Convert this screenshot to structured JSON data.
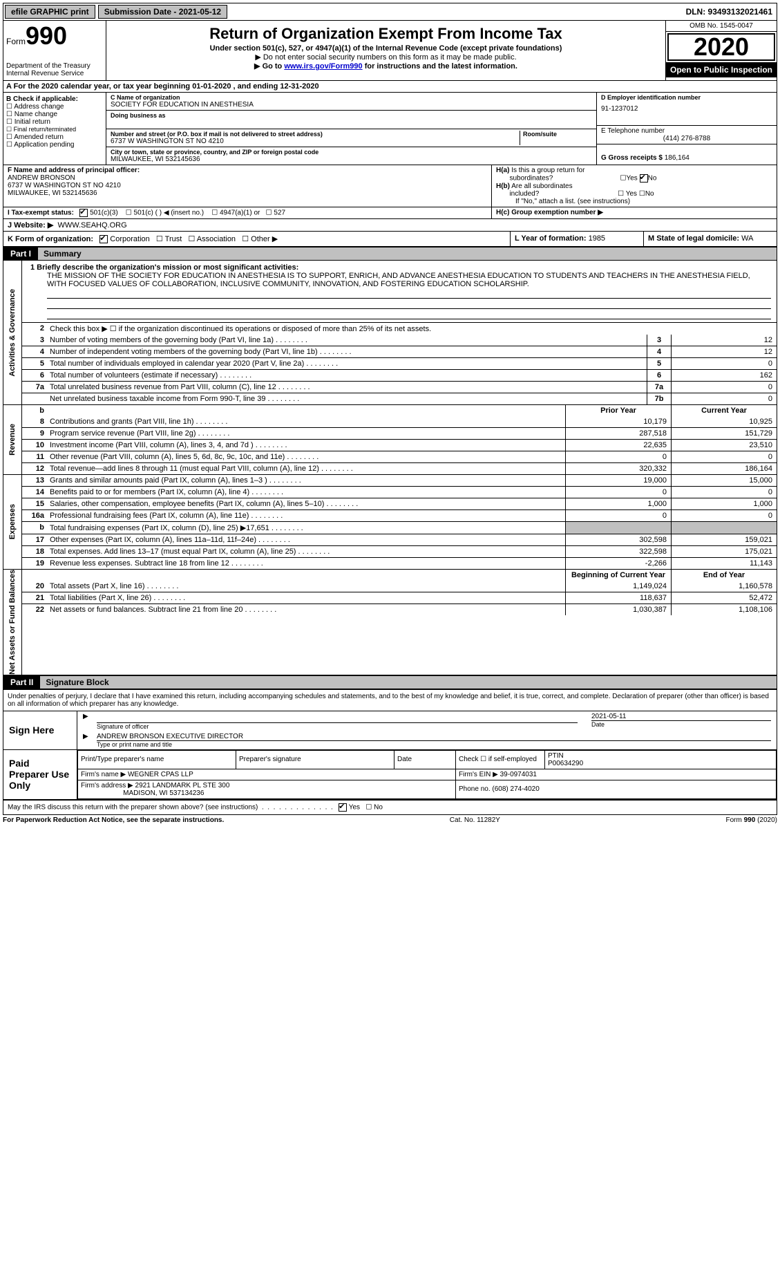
{
  "topbar": {
    "efile": "efile GRAPHIC print",
    "submission": "Submission Date - 2021-05-12",
    "dln": "DLN: 93493132021461"
  },
  "header": {
    "form_word": "Form",
    "form_number": "990",
    "dept": "Department of the Treasury\nInternal Revenue Service",
    "title": "Return of Organization Exempt From Income Tax",
    "subtitle": "Under section 501(c), 527, or 4947(a)(1) of the Internal Revenue Code (except private foundations)",
    "note1": "▶ Do not enter social security numbers on this form as it may be made public.",
    "note2_prefix": "▶ Go to ",
    "note2_link": "www.irs.gov/Form990",
    "note2_suffix": " for instructions and the latest information.",
    "omb": "OMB No. 1545-0047",
    "year": "2020",
    "open_public": "Open to Public Inspection"
  },
  "line_a": "A For the 2020 calendar year, or tax year beginning 01-01-2020    , and ending 12-31-2020",
  "section_b": {
    "header": "B Check if applicable:",
    "options": [
      "Address change",
      "Name change",
      "Initial return",
      "Final return/terminated",
      "Amended return",
      "Application pending"
    ],
    "c_label": "C Name of organization",
    "c_value": "SOCIETY FOR EDUCATION IN ANESTHESIA",
    "dba_label": "Doing business as",
    "addr_label": "Number and street (or P.O. box if mail is not delivered to street address)",
    "addr_value": "6737 W WASHINGTON ST NO 4210",
    "room_label": "Room/suite",
    "city_label": "City or town, state or province, country, and ZIP or foreign postal code",
    "city_value": "MILWAUKEE, WI  532145636",
    "d_label": "D Employer identification number",
    "d_value": "91-1237012",
    "e_label": "E Telephone number",
    "e_value": "(414) 276-8788",
    "g_label": "G Gross receipts $",
    "g_value": "186,164"
  },
  "section_f": {
    "f_label": "F Name and address of principal officer:",
    "f_name": "ANDREW BRONSON",
    "f_addr1": "6737 W WASHINGTON ST NO 4210",
    "f_addr2": "MILWAUKEE, WI  532145636",
    "ha_label": "H(a)  Is this a group return for subordinates?",
    "ha_yes": "Yes",
    "ha_no": "No",
    "hb_label": "H(b)  Are all subordinates included?",
    "hb_yes": "Yes",
    "hb_no": "No",
    "hb_note": "If \"No,\" attach a list. (see instructions)",
    "hc_label": "H(c)  Group exemption number ▶"
  },
  "section_i": {
    "label": "I  Tax-exempt status:",
    "opt1": "501(c)(3)",
    "opt2": "501(c) (   ) ◀ (insert no.)",
    "opt3": "4947(a)(1) or",
    "opt4": "527"
  },
  "section_j": {
    "label": "J  Website: ▶",
    "value": "WWW.SEAHQ.ORG"
  },
  "section_k": {
    "label": "K Form of organization:",
    "opts": [
      "Corporation",
      "Trust",
      "Association",
      "Other ▶"
    ],
    "l_label": "L Year of formation:",
    "l_value": "1985",
    "m_label": "M State of legal domicile:",
    "m_value": "WA"
  },
  "part1": {
    "tab": "Part I",
    "title": "Summary"
  },
  "mission": {
    "q": "1  Briefly describe the organization's mission or most significant activities:",
    "text": "THE MISSION OF THE SOCIETY FOR EDUCATION IN ANESTHESIA IS TO SUPPORT, ENRICH, AND ADVANCE ANESTHESIA EDUCATION TO STUDENTS AND TEACHERS IN THE ANESTHESIA FIELD, WITH FOCUSED VALUES OF COLLABORATION, INCLUSIVE COMMUNITY, INNOVATION, AND FOSTERING EDUCATION SCHOLARSHIP."
  },
  "governance": {
    "label": "Activities & Governance",
    "line2": "Check this box ▶ ☐  if the organization discontinued its operations or disposed of more than 25% of its net assets.",
    "lines": [
      {
        "num": "3",
        "desc": "Number of voting members of the governing body (Part VI, line 1a)",
        "cell": "3",
        "val": "12"
      },
      {
        "num": "4",
        "desc": "Number of independent voting members of the governing body (Part VI, line 1b)",
        "cell": "4",
        "val": "12"
      },
      {
        "num": "5",
        "desc": "Total number of individuals employed in calendar year 2020 (Part V, line 2a)",
        "cell": "5",
        "val": "0"
      },
      {
        "num": "6",
        "desc": "Total number of volunteers (estimate if necessary)",
        "cell": "6",
        "val": "162"
      },
      {
        "num": "7a",
        "desc": "Total unrelated business revenue from Part VIII, column (C), line 12",
        "cell": "7a",
        "val": "0"
      },
      {
        "num": "",
        "desc": "Net unrelated business taxable income from Form 990-T, line 39",
        "cell": "7b",
        "val": "0"
      }
    ]
  },
  "revenue": {
    "label": "Revenue",
    "header_prior": "Prior Year",
    "header_curr": "Current Year",
    "lines": [
      {
        "num": "8",
        "desc": "Contributions and grants (Part VIII, line 1h)",
        "prior": "10,179",
        "curr": "10,925"
      },
      {
        "num": "9",
        "desc": "Program service revenue (Part VIII, line 2g)",
        "prior": "287,518",
        "curr": "151,729"
      },
      {
        "num": "10",
        "desc": "Investment income (Part VIII, column (A), lines 3, 4, and 7d )",
        "prior": "22,635",
        "curr": "23,510"
      },
      {
        "num": "11",
        "desc": "Other revenue (Part VIII, column (A), lines 5, 6d, 8c, 9c, 10c, and 11e)",
        "prior": "0",
        "curr": "0"
      },
      {
        "num": "12",
        "desc": "Total revenue—add lines 8 through 11 (must equal Part VIII, column (A), line 12)",
        "prior": "320,332",
        "curr": "186,164"
      }
    ]
  },
  "expenses": {
    "label": "Expenses",
    "lines": [
      {
        "num": "13",
        "desc": "Grants and similar amounts paid (Part IX, column (A), lines 1–3 )",
        "prior": "19,000",
        "curr": "15,000"
      },
      {
        "num": "14",
        "desc": "Benefits paid to or for members (Part IX, column (A), line 4)",
        "prior": "0",
        "curr": "0"
      },
      {
        "num": "15",
        "desc": "Salaries, other compensation, employee benefits (Part IX, column (A), lines 5–10)",
        "prior": "1,000",
        "curr": "1,000"
      },
      {
        "num": "16a",
        "desc": "Professional fundraising fees (Part IX, column (A), line 11e)",
        "prior": "0",
        "curr": "0"
      },
      {
        "num": "b",
        "desc": "Total fundraising expenses (Part IX, column (D), line 25) ▶17,651",
        "prior": "",
        "curr": "",
        "shaded": true
      },
      {
        "num": "17",
        "desc": "Other expenses (Part IX, column (A), lines 11a–11d, 11f–24e)",
        "prior": "302,598",
        "curr": "159,021"
      },
      {
        "num": "18",
        "desc": "Total expenses. Add lines 13–17 (must equal Part IX, column (A), line 25)",
        "prior": "322,598",
        "curr": "175,021"
      },
      {
        "num": "19",
        "desc": "Revenue less expenses. Subtract line 18 from line 12",
        "prior": "-2,266",
        "curr": "11,143"
      }
    ]
  },
  "netassets": {
    "label": "Net Assets or Fund Balances",
    "header_prior": "Beginning of Current Year",
    "header_curr": "End of Year",
    "lines": [
      {
        "num": "20",
        "desc": "Total assets (Part X, line 16)",
        "prior": "1,149,024",
        "curr": "1,160,578"
      },
      {
        "num": "21",
        "desc": "Total liabilities (Part X, line 26)",
        "prior": "118,637",
        "curr": "52,472"
      },
      {
        "num": "22",
        "desc": "Net assets or fund balances. Subtract line 21 from line 20",
        "prior": "1,030,387",
        "curr": "1,108,106"
      }
    ]
  },
  "part2": {
    "tab": "Part II",
    "title": "Signature Block"
  },
  "signature": {
    "perjury": "Under penalties of perjury, I declare that I have examined this return, including accompanying schedules and statements, and to the best of my knowledge and belief, it is true, correct, and complete. Declaration of preparer (other than officer) is based on all information of which preparer has any knowledge.",
    "sign_here": "Sign Here",
    "sig_officer_label": "Signature of officer",
    "sig_date_label": "Date",
    "sig_date": "2021-05-11",
    "name_title": "ANDREW BRONSON  EXECUTIVE DIRECTOR",
    "name_title_label": "Type or print name and title",
    "paid_preparer": "Paid Preparer Use Only",
    "print_name_label": "Print/Type preparer's name",
    "prep_sig_label": "Preparer's signature",
    "date_label": "Date",
    "check_self": "Check ☐ if self-employed",
    "ptin_label": "PTIN",
    "ptin": "P00634290",
    "firm_name_label": "Firm's name    ▶",
    "firm_name": "WEGNER CPAS LLP",
    "firm_ein_label": "Firm's EIN ▶",
    "firm_ein": "39-0974031",
    "firm_addr_label": "Firm's address ▶",
    "firm_addr1": "2921 LANDMARK PL STE 300",
    "firm_addr2": "MADISON, WI  537134236",
    "phone_label": "Phone no.",
    "phone": "(608) 274-4020",
    "discuss": "May the IRS discuss this return with the preparer shown above? (see instructions)",
    "yes": "Yes",
    "no": "No"
  },
  "footer": {
    "left": "For Paperwork Reduction Act Notice, see the separate instructions.",
    "mid": "Cat. No. 11282Y",
    "right": "Form 990 (2020)"
  },
  "colors": {
    "button_bg": "#c0c0c0",
    "link": "#0000cc",
    "black": "#000000"
  }
}
